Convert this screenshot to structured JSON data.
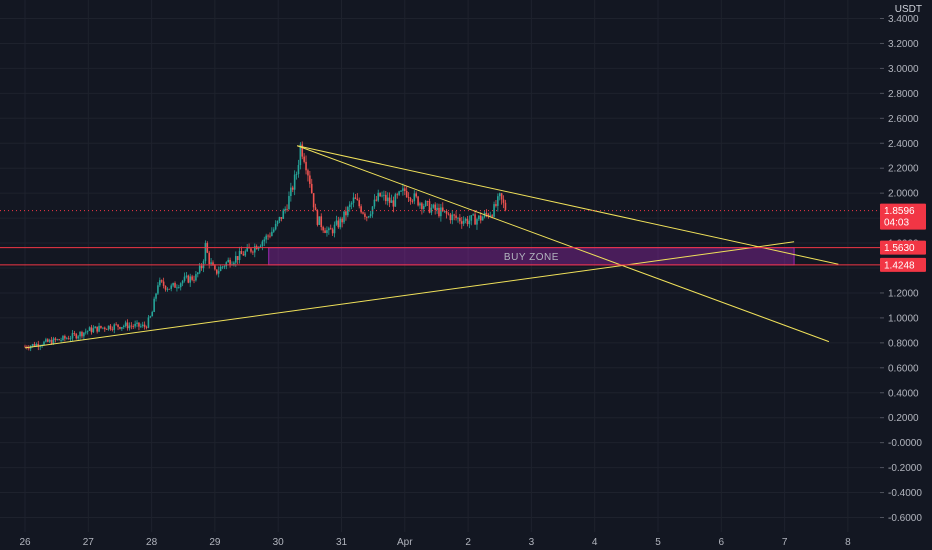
{
  "chart_data": {
    "type": "candlestick",
    "currency": "USDT",
    "y_axis": {
      "min": -0.6,
      "max": 3.4,
      "step": 0.2,
      "ticks": [
        "3.4000",
        "3.2000",
        "3.0000",
        "2.8000",
        "2.6000",
        "2.4000",
        "2.2000",
        "2.0000",
        "1.8000",
        "1.6000",
        "1.4000",
        "1.2000",
        "1.0000",
        "0.8000",
        "0.6000",
        "0.4000",
        "0.2000",
        "-0.0000",
        "-0.2000",
        "-0.4000",
        "-0.6000"
      ]
    },
    "x_axis": {
      "labels": [
        "26",
        "27",
        "28",
        "29",
        "30",
        "31",
        "Apr",
        "2",
        "3",
        "4",
        "5",
        "6",
        "7",
        "8"
      ],
      "day_index": [
        0,
        1,
        2,
        3,
        4,
        5,
        6,
        7,
        8,
        9,
        10,
        11,
        12,
        13
      ]
    },
    "price_path": [
      [
        0.0,
        0.77
      ],
      [
        0.3,
        0.8
      ],
      [
        0.6,
        0.83
      ],
      [
        0.8,
        0.86
      ],
      [
        1.0,
        0.9
      ],
      [
        1.3,
        0.93
      ],
      [
        1.6,
        0.94
      ],
      [
        1.9,
        0.93
      ],
      [
        2.0,
        1.02
      ],
      [
        2.1,
        1.28
      ],
      [
        2.3,
        1.24
      ],
      [
        2.5,
        1.3
      ],
      [
        2.7,
        1.33
      ],
      [
        2.8,
        1.42
      ],
      [
        2.85,
        1.58
      ],
      [
        2.9,
        1.47
      ],
      [
        3.0,
        1.36
      ],
      [
        3.2,
        1.45
      ],
      [
        3.4,
        1.5
      ],
      [
        3.6,
        1.56
      ],
      [
        3.8,
        1.64
      ],
      [
        3.95,
        1.72
      ],
      [
        4.1,
        1.86
      ],
      [
        4.2,
        2.0
      ],
      [
        4.3,
        2.18
      ],
      [
        4.35,
        2.38
      ],
      [
        4.42,
        2.28
      ],
      [
        4.5,
        2.1
      ],
      [
        4.6,
        1.8
      ],
      [
        4.8,
        1.68
      ],
      [
        5.0,
        1.78
      ],
      [
        5.2,
        1.95
      ],
      [
        5.4,
        1.82
      ],
      [
        5.6,
        1.98
      ],
      [
        5.8,
        1.92
      ],
      [
        6.0,
        2.02
      ],
      [
        6.2,
        1.94
      ],
      [
        6.4,
        1.88
      ],
      [
        6.6,
        1.84
      ],
      [
        6.8,
        1.8
      ],
      [
        7.0,
        1.78
      ],
      [
        7.2,
        1.8
      ],
      [
        7.4,
        1.86
      ],
      [
        7.5,
        1.96
      ],
      [
        7.6,
        1.87
      ]
    ],
    "current_price": {
      "value": 1.8596,
      "label": "1.8596",
      "countdown": "04:03",
      "color": "#f23645"
    },
    "levels": [
      {
        "value": 1.563,
        "label": "1.5630",
        "color": "#f23645"
      },
      {
        "value": 1.4248,
        "label": "1.4248",
        "color": "#f23645"
      }
    ],
    "buy_zone": {
      "label": "BUY ZONE",
      "x_start": 3.85,
      "x_end": 12.15,
      "y_low": 1.4248,
      "y_high": 1.563,
      "color": "#9c27b0"
    },
    "trendlines": [
      {
        "x1": 4.3,
        "y1": 2.38,
        "x2": 12.85,
        "y2": 1.43,
        "color": "#f0e15a"
      },
      {
        "x1": 4.3,
        "y1": 2.38,
        "x2": 12.7,
        "y2": 0.81,
        "color": "#f0e15a"
      },
      {
        "x1": 0.0,
        "y1": 0.76,
        "x2": 12.15,
        "y2": 1.61,
        "color": "#f0e15a"
      }
    ],
    "colors": {
      "background": "#131722",
      "up": "#26a69a",
      "down": "#ef5350",
      "grid": "#1e222d"
    }
  }
}
